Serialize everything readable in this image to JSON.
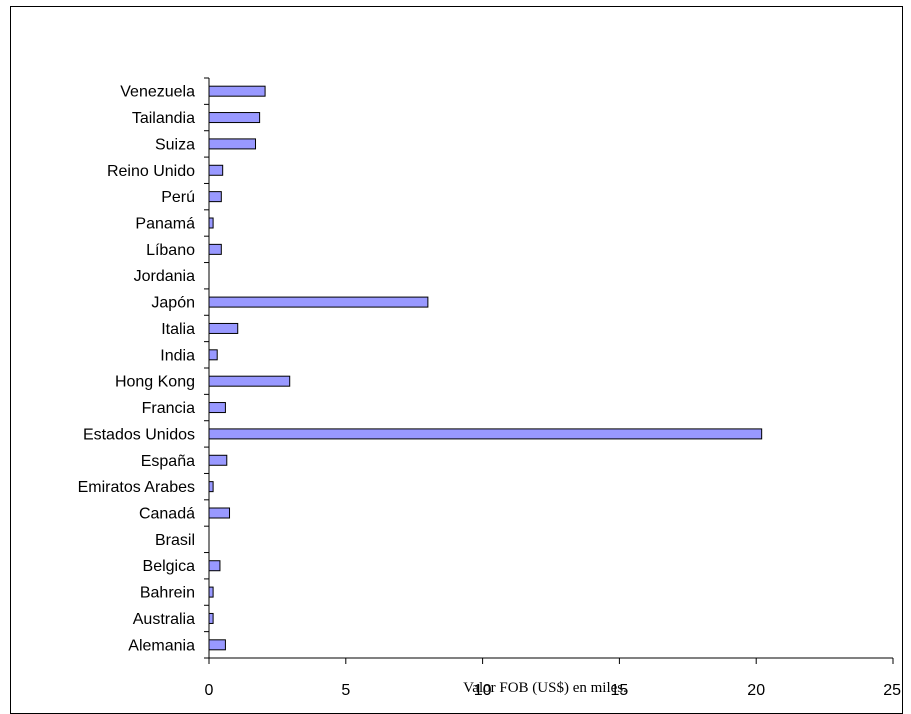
{
  "chart_data": {
    "type": "bar",
    "orientation": "horizontal",
    "categories": [
      "Venezuela",
      "Tailandia",
      "Suiza",
      "Reino Unido",
      "Perú",
      "Panamá",
      "Líbano",
      "Jordania",
      "Japón",
      "Italia",
      "India",
      "Hong Kong",
      "Francia",
      "Estados Unidos",
      "España",
      "Emiratos Arabes",
      "Canadá",
      "Brasil",
      "Belgica",
      "Bahrein",
      "Australia",
      "Alemania"
    ],
    "values": [
      2.05,
      1.85,
      1.7,
      0.5,
      0.45,
      0.15,
      0.45,
      0.0,
      8.0,
      1.05,
      0.3,
      2.95,
      0.6,
      20.2,
      0.65,
      0.15,
      0.75,
      0.0,
      0.4,
      0.15,
      0.15,
      0.6
    ],
    "xlabel": "Valor FOB (US$) en miles.",
    "ylabel": "",
    "title": "",
    "xlim": [
      0,
      25
    ],
    "xticks": [
      "0",
      "5",
      "10",
      "15",
      "20",
      "25"
    ],
    "grid": false,
    "bar_color": "#9999ff",
    "bar_stroke": "#000000"
  }
}
